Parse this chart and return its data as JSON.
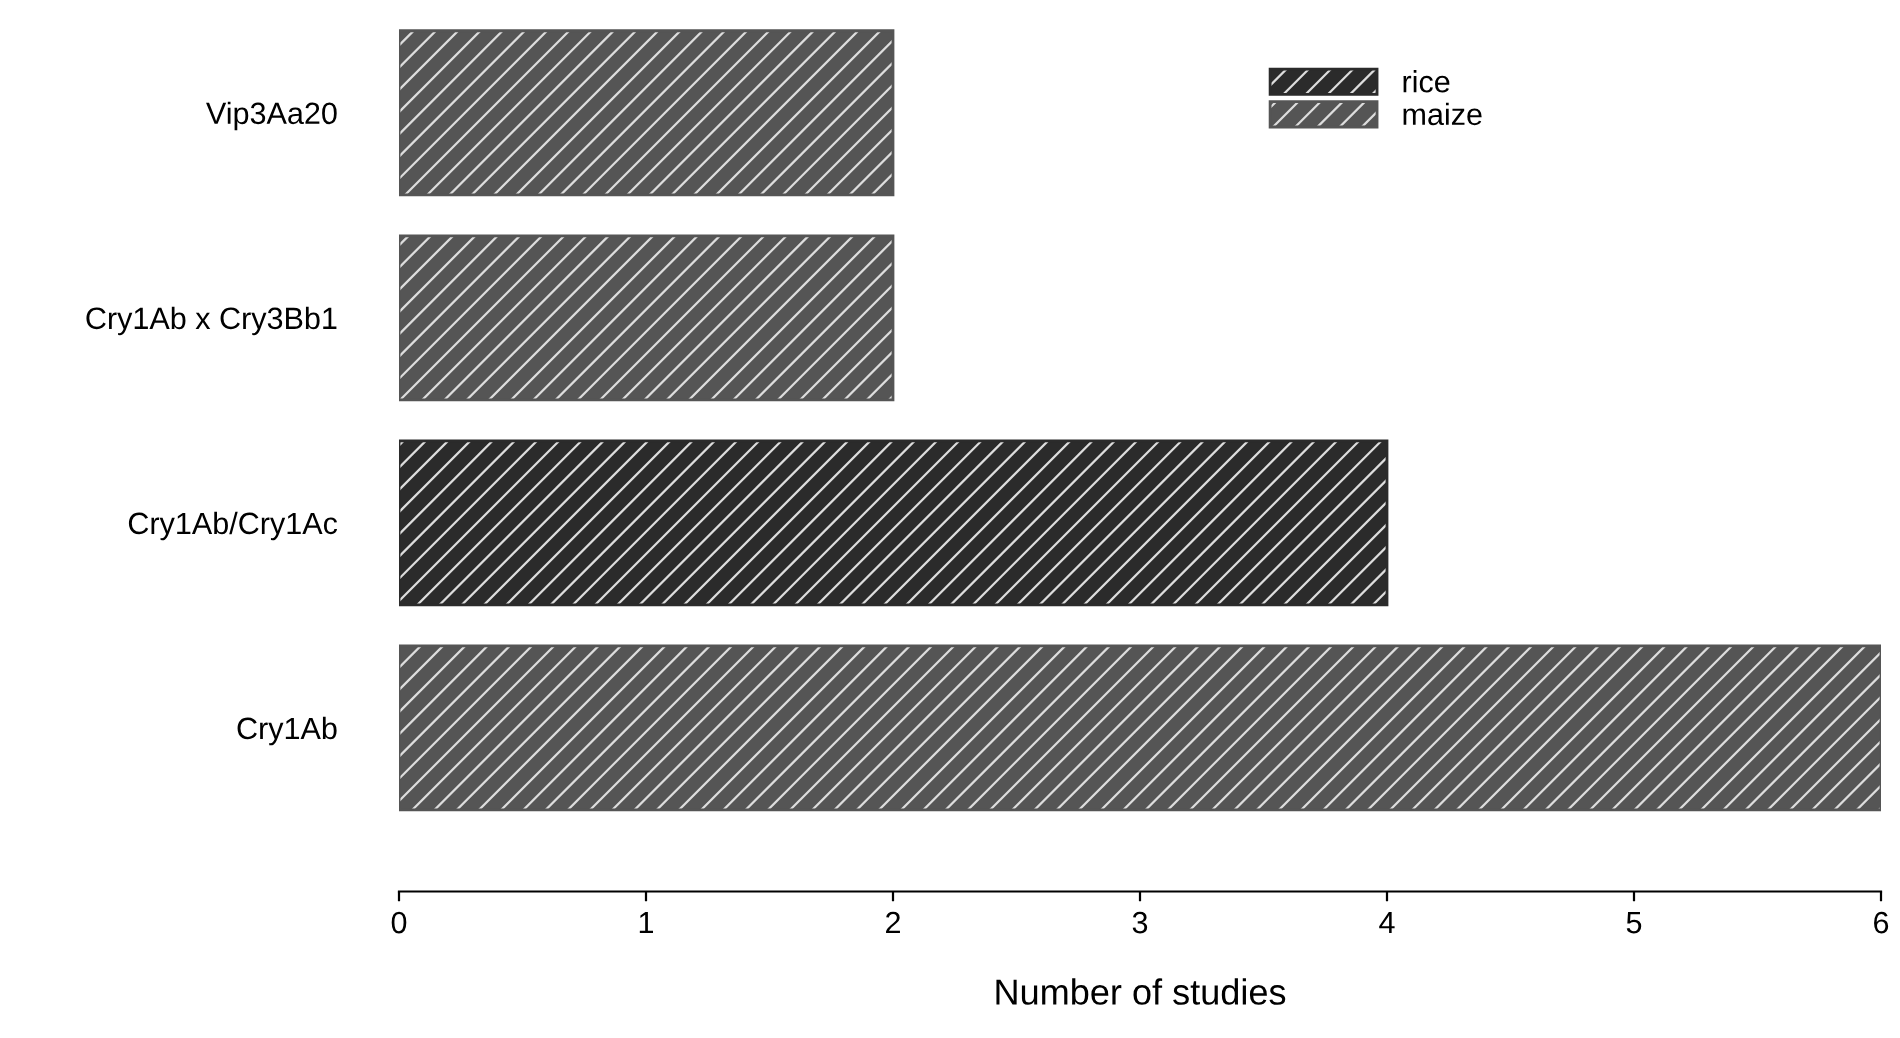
{
  "chart_data": {
    "type": "bar",
    "orientation": "horizontal",
    "xlabel": "Number of studies",
    "categories": [
      "Vip3Aa20",
      "Cry1Ab x Cry3Bb1",
      "Cry1Ab/Cry1Ac",
      "Cry1Ab"
    ],
    "series": [
      {
        "name": "rice",
        "color": "#2b2b2b",
        "values": [
          null,
          null,
          4,
          null
        ]
      },
      {
        "name": "maize",
        "color": "#555555",
        "values": [
          2,
          2,
          null,
          6
        ]
      }
    ],
    "xlim": [
      0,
      6
    ],
    "xticks": [
      0,
      1,
      2,
      3,
      4,
      5,
      6
    ],
    "grid": false,
    "legend": "top right"
  }
}
